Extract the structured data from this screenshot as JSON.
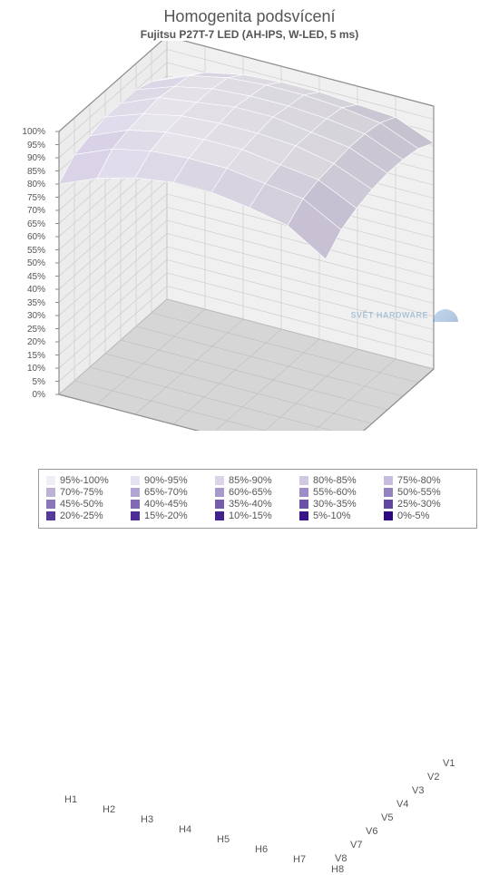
{
  "chart": {
    "type": "3d-surface",
    "title": "Homogenita podsvícení",
    "subtitle": "Fujitsu P27T-7 LED  (AH-IPS, W-LED, 5 ms)",
    "title_fontsize": 18,
    "subtitle_fontsize": 12,
    "background_color": "#ffffff",
    "text_color": "#555555",
    "grid_color": "#b5b5b5",
    "wall_color": "#e8e8e8",
    "floor_color": "#cfcfcf",
    "x_categories": [
      "H1",
      "H2",
      "H3",
      "H4",
      "H5",
      "H6",
      "H7",
      "H8"
    ],
    "y_categories": [
      "V1",
      "V2",
      "V3",
      "V4",
      "V5",
      "V6",
      "V7",
      "V8"
    ],
    "z_ticks": [
      "100%",
      "95%",
      "90%",
      "85%",
      "80%",
      "75%",
      "70%",
      "65%",
      "60%",
      "55%",
      "50%",
      "45%",
      "40%",
      "35%",
      "30%",
      "25%",
      "20%",
      "15%",
      "10%",
      "5%",
      "0%"
    ],
    "zlim": [
      0,
      100
    ],
    "surface_values": [
      [
        84,
        90,
        93,
        94,
        94,
        93,
        92,
        86
      ],
      [
        88,
        94,
        97,
        98,
        98,
        97,
        95,
        89
      ],
      [
        90,
        95,
        98,
        99,
        99,
        98,
        96,
        90
      ],
      [
        90,
        96,
        98,
        100,
        100,
        98,
        96,
        90
      ],
      [
        90,
        95,
        98,
        99,
        99,
        98,
        95,
        89
      ],
      [
        88,
        94,
        97,
        98,
        98,
        96,
        94,
        87
      ],
      [
        86,
        92,
        95,
        96,
        96,
        94,
        92,
        84
      ],
      [
        80,
        86,
        90,
        92,
        92,
        90,
        87,
        78
      ]
    ],
    "legend_bands": [
      {
        "label": "95%-100%",
        "color": "#f0edf5"
      },
      {
        "label": "90%-95%",
        "color": "#e6e1f0"
      },
      {
        "label": "85%-90%",
        "color": "#dcd5ea"
      },
      {
        "label": "80%-85%",
        "color": "#d1c9e4"
      },
      {
        "label": "75%-80%",
        "color": "#c7bdde"
      },
      {
        "label": "70%-75%",
        "color": "#bdb1d8"
      },
      {
        "label": "65%-70%",
        "color": "#b2a5d2"
      },
      {
        "label": "60%-65%",
        "color": "#a899cc"
      },
      {
        "label": "55%-60%",
        "color": "#9e8dc6"
      },
      {
        "label": "50%-55%",
        "color": "#9381c0"
      },
      {
        "label": "45%-50%",
        "color": "#8975ba"
      },
      {
        "label": "40%-45%",
        "color": "#7f69b4"
      },
      {
        "label": "35%-40%",
        "color": "#745dad"
      },
      {
        "label": "30%-35%",
        "color": "#6a51a7"
      },
      {
        "label": "25%-30%",
        "color": "#6045a1"
      },
      {
        "label": "20%-25%",
        "color": "#55399b"
      },
      {
        "label": "15%-20%",
        "color": "#4b2d95"
      },
      {
        "label": "10%-15%",
        "color": "#41218f"
      },
      {
        "label": "5%-10%",
        "color": "#361589"
      },
      {
        "label": "0%-5%",
        "color": "#2c0983"
      }
    ],
    "watermark": "SVĚT HARDWARE"
  }
}
